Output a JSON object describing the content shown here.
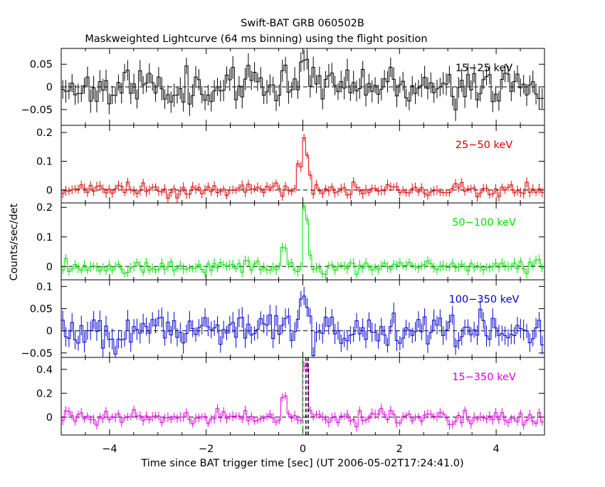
{
  "title": "Swift-BAT GRB 060502B",
  "subtitle": "Maskweighted Lightcurve (64 ms binning) using the flight position",
  "xlabel": "Time since BAT trigger time [sec] (UT 2006-05-02T17:24:41.0)",
  "ylabel": "Counts/sec/det",
  "chart_data": {
    "type": "line",
    "xlim": [
      -5,
      5
    ],
    "bin_width_sec": 0.064,
    "x_ticks": [
      -4,
      -2,
      0,
      2,
      4
    ],
    "x_tick_labels": [
      "−4",
      "−2",
      "0",
      "2",
      "4"
    ],
    "markers": [
      {
        "x": 0.0,
        "style": "dashed",
        "color": "#00c000",
        "panel": 4
      },
      {
        "x": 0.064,
        "style": "dashed",
        "color": "#000000",
        "panel": 4
      },
      {
        "x": 0.11,
        "style": "dashed",
        "color": "#000000",
        "panel": 4
      }
    ],
    "panels": [
      {
        "name": "15−25 keV",
        "color": "#000000",
        "ylim": [
          -0.085,
          0.085
        ],
        "y_ticks": [
          -0.05,
          0,
          0.05
        ],
        "y_tick_labels": [
          "−0.05",
          "0",
          "0.05"
        ],
        "noise": 0.025,
        "err": 0.022,
        "burst": [
          {
            "t0": -0.45,
            "t1": -0.3,
            "v": 0.04
          },
          {
            "t0": -0.05,
            "t1": 0.1,
            "v": 0.06
          }
        ],
        "seed": 11
      },
      {
        "name": "25−50 keV",
        "color": "#e00000",
        "ylim": [
          -0.045,
          0.225
        ],
        "y_ticks": [
          0,
          0.1,
          0.2
        ],
        "y_tick_labels": [
          "0",
          "0.1",
          "0.2"
        ],
        "noise": 0.014,
        "err": 0.015,
        "burst": [
          {
            "t0": -0.12,
            "t1": -0.02,
            "v": 0.09
          },
          {
            "t0": -0.02,
            "t1": 0.06,
            "v": 0.18
          },
          {
            "t0": 0.06,
            "t1": 0.12,
            "v": 0.12
          },
          {
            "t0": 0.12,
            "t1": 0.2,
            "v": 0.05
          }
        ],
        "seed": 23
      },
      {
        "name": "50−100 keV",
        "color": "#00e000",
        "ylim": [
          -0.045,
          0.215
        ],
        "y_ticks": [
          0,
          0.1,
          0.2
        ],
        "y_tick_labels": [
          "0",
          "0.1",
          "0.2"
        ],
        "noise": 0.014,
        "err": 0.015,
        "burst": [
          {
            "t0": -0.45,
            "t1": -0.3,
            "v": 0.06
          },
          {
            "t0": -0.02,
            "t1": 0.05,
            "v": 0.2
          },
          {
            "t0": 0.05,
            "t1": 0.12,
            "v": 0.16
          },
          {
            "t0": 0.12,
            "t1": 0.18,
            "v": 0.04
          }
        ],
        "seed": 37
      },
      {
        "name": "100−350 keV",
        "color": "#0000d0",
        "ylim": [
          -0.06,
          0.115
        ],
        "y_ticks": [
          -0.05,
          0,
          0.05,
          0.1
        ],
        "y_tick_labels": [
          "−0.05",
          "0",
          "0.05",
          "0.1"
        ],
        "noise": 0.022,
        "err": 0.02,
        "burst": [
          {
            "t0": -0.45,
            "t1": -0.3,
            "v": 0.03
          },
          {
            "t0": -0.05,
            "t1": 0.05,
            "v": 0.08
          },
          {
            "t0": 0.05,
            "t1": 0.1,
            "v": 0.045
          }
        ],
        "seed": 51
      },
      {
        "name": "15−350 keV",
        "color": "#e000e0",
        "ylim": [
          -0.15,
          0.5
        ],
        "y_ticks": [
          0,
          0.2,
          0.4
        ],
        "y_tick_labels": [
          "0",
          "0.2",
          "0.4"
        ],
        "noise": 0.035,
        "err": 0.035,
        "burst": [
          {
            "t0": -0.45,
            "t1": -0.3,
            "v": 0.17
          },
          {
            "t0": -0.02,
            "t1": 0.06,
            "v": 0.42
          },
          {
            "t0": 0.06,
            "t1": 0.13,
            "v": 0.43
          },
          {
            "t0": 0.13,
            "t1": 0.18,
            "v": 0.05
          }
        ],
        "seed": 67
      }
    ]
  }
}
